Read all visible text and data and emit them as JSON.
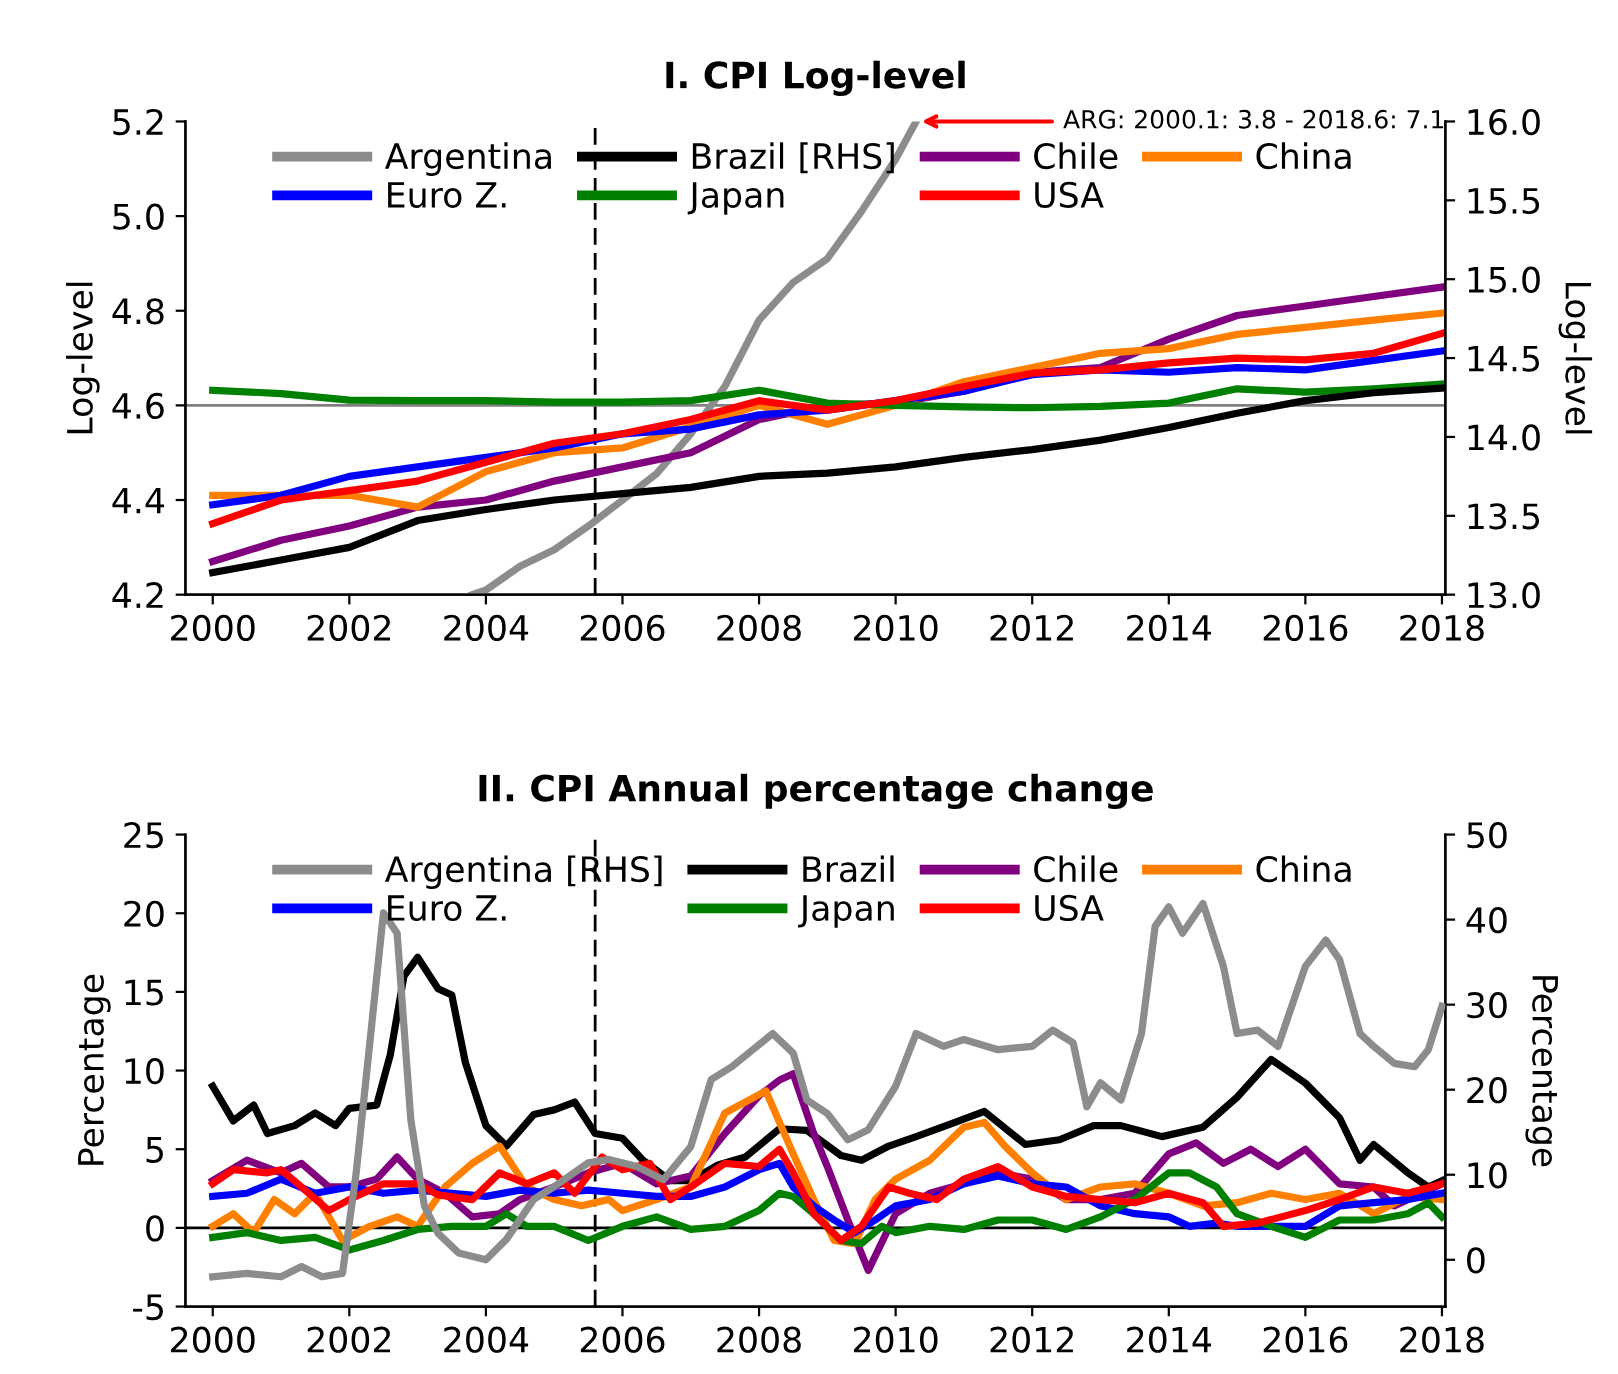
{
  "chart_data": [
    {
      "type": "line",
      "title": "I. CPI Log-level",
      "ylabel": "Log-level",
      "y2label": "Log-level",
      "x": [
        2000,
        2001,
        2002,
        2003,
        2004,
        2005,
        2006,
        2007,
        2008,
        2009,
        2010,
        2011,
        2012,
        2013,
        2014,
        2015,
        2016,
        2017,
        2018
      ],
      "series": [
        {
          "name": "Argentina",
          "color": "#8c8c8c",
          "x": [
            2003.8,
            2004,
            2004.5,
            2005,
            2005.5,
            2006,
            2006.5,
            2007,
            2007.5,
            2008,
            2008.5,
            2009,
            2009.5,
            2010,
            2010.3
          ],
          "values": [
            4.2,
            4.21,
            4.26,
            4.295,
            4.345,
            4.4,
            4.456,
            4.54,
            4.64,
            4.78,
            4.86,
            4.91,
            5.01,
            5.12,
            5.2
          ]
        },
        {
          "name": "Brazil [RHS]",
          "color": "#000000",
          "axis": "y2",
          "values": [
            13.14,
            13.22,
            13.3,
            13.47,
            13.54,
            13.6,
            13.64,
            13.68,
            13.75,
            13.77,
            13.81,
            13.87,
            13.92,
            13.98,
            14.06,
            14.15,
            14.23,
            14.28,
            14.31
          ]
        },
        {
          "name": "Chile",
          "color": "#800080",
          "values": [
            4.27,
            4.315,
            4.345,
            4.385,
            4.4,
            4.44,
            4.47,
            4.5,
            4.57,
            4.6,
            4.605,
            4.63,
            4.67,
            4.68,
            4.74,
            4.79,
            4.81,
            4.83,
            4.85
          ]
        },
        {
          "name": "China",
          "color": "#ff8000",
          "values": [
            4.41,
            4.41,
            4.41,
            4.385,
            4.46,
            4.5,
            4.51,
            4.555,
            4.6,
            4.56,
            4.6,
            4.65,
            4.68,
            4.71,
            4.72,
            4.75,
            4.765,
            4.78,
            4.795
          ]
        },
        {
          "name": "Euro Z.",
          "color": "#0000ff",
          "values": [
            4.39,
            4.41,
            4.45,
            4.47,
            4.49,
            4.51,
            4.54,
            4.55,
            4.58,
            4.59,
            4.61,
            4.63,
            4.665,
            4.675,
            4.67,
            4.68,
            4.675,
            4.695,
            4.715
          ]
        },
        {
          "name": "Japan",
          "color": "#008000",
          "values": [
            4.632,
            4.625,
            4.611,
            4.61,
            4.61,
            4.607,
            4.607,
            4.61,
            4.632,
            4.605,
            4.6,
            4.597,
            4.595,
            4.598,
            4.605,
            4.635,
            4.628,
            4.635,
            4.645
          ]
        },
        {
          "name": "USA",
          "color": "#ff0000",
          "values": [
            4.35,
            4.4,
            4.42,
            4.44,
            4.48,
            4.52,
            4.54,
            4.57,
            4.61,
            4.59,
            4.61,
            4.64,
            4.668,
            4.675,
            4.69,
            4.7,
            4.696,
            4.71,
            4.752
          ]
        }
      ],
      "xlim": [
        1999.6,
        2018.05
      ],
      "xticks": [
        2000,
        2002,
        2004,
        2006,
        2008,
        2010,
        2012,
        2014,
        2016,
        2018
      ],
      "ylim": [
        4.2,
        5.2
      ],
      "yticks": [
        4.2,
        4.4,
        4.6,
        4.8,
        {
          "value": 5,
          "label": "5.0"
        },
        5.2
      ],
      "y2lim": [
        13,
        16
      ],
      "y2ticks": [
        {
          "value": 13,
          "label": "13.0"
        },
        13.5,
        {
          "value": 14,
          "label": "14.0"
        },
        14.5,
        {
          "value": 15,
          "label": "15.0"
        },
        15.5,
        {
          "value": 16,
          "label": "16.0"
        }
      ],
      "ref_lines": [
        {
          "axis": "x",
          "value": 2005.6,
          "color": "#000000",
          "line_style": "dashed"
        },
        {
          "axis": "y",
          "value": 4.6,
          "color": "#808080"
        }
      ],
      "annotations": [
        "ARG: 2000.1: 3.8 - 2018.6: 7.1"
      ],
      "legend": "top",
      "grid": false
    },
    {
      "type": "line",
      "title": "II. CPI Annual percentage change",
      "ylabel": "Percentage",
      "y2label": "Percentage",
      "series": [
        {
          "name": "Argentina [RHS]",
          "color": "#8c8c8c",
          "axis": "y2",
          "x": [
            2000,
            2000.5,
            2001,
            2001.3,
            2001.6,
            2001.9,
            2002.1,
            2002.5,
            2002.7,
            2002.9,
            2003.1,
            2003.3,
            2003.6,
            2004,
            2004.3,
            2004.7,
            2005,
            2005.5,
            2005.8,
            2006.2,
            2006.6,
            2007,
            2007.3,
            2007.6,
            2008.2,
            2008.5,
            2008.7,
            2009,
            2009.3,
            2009.6,
            2010,
            2010.3,
            2010.7,
            2011,
            2011.5,
            2012,
            2012.3,
            2012.6,
            2012.8,
            2013,
            2013.3,
            2013.6,
            2013.8,
            2014,
            2014.2,
            2014.5,
            2014.8,
            2015,
            2015.3,
            2015.6,
            2016,
            2016.3,
            2016.5,
            2016.8,
            2017,
            2017.3,
            2017.6,
            2017.8,
            2018
          ],
          "values": [
            -2.0,
            -1.6,
            -2.0,
            -0.8,
            -2.0,
            -1.6,
            10.2,
            40.8,
            38.4,
            16.5,
            6.3,
            3.1,
            0.8,
            0,
            2.4,
            7.1,
            8.6,
            11.4,
            11.8,
            11.0,
            9.4,
            13.3,
            21.2,
            22.7,
            26.6,
            24.3,
            18.8,
            17.2,
            14.1,
            15.3,
            20.4,
            26.6,
            25.1,
            25.9,
            24.7,
            25.1,
            27.0,
            25.5,
            18.0,
            20.8,
            18.8,
            26.6,
            39.2,
            41.5,
            38.4,
            41.9,
            34.5,
            26.6,
            27.0,
            25.1,
            34.5,
            37.6,
            35.3,
            26.6,
            25.1,
            23.1,
            22.7,
            24.7,
            29.8
          ]
        },
        {
          "name": "Brazil",
          "color": "#000000",
          "x": [
            2000.0,
            2000.3,
            2000.6,
            2000.8,
            2001.2,
            2001.5,
            2001.8,
            2002.0,
            2002.4,
            2002.6,
            2002.8,
            2003.0,
            2003.3,
            2003.5,
            2003.7,
            2004.0,
            2004.3,
            2004.7,
            2005.0,
            2005.3,
            2005.6,
            2006.0,
            2006.3,
            2006.7,
            2007.0,
            2007.4,
            2007.8,
            2008.3,
            2008.7,
            2009.2,
            2009.5,
            2009.9,
            2010.3,
            2010.8,
            2011.3,
            2011.9,
            2012.4,
            2012.9,
            2013.3,
            2013.9,
            2014.5,
            2015.0,
            2015.5,
            2016.0,
            2016.5,
            2016.8,
            2017.0,
            2017.5,
            2017.8,
            2018.0
          ],
          "values": [
            9.0,
            6.8,
            7.8,
            6.0,
            6.5,
            7.3,
            6.5,
            7.6,
            7.8,
            11,
            16,
            17.2,
            15.2,
            14.8,
            10.5,
            6.5,
            5.2,
            7.2,
            7.5,
            8.0,
            6.0,
            5.7,
            4.3,
            3.0,
            3.0,
            4.0,
            4.5,
            6.3,
            6.2,
            4.6,
            4.3,
            5.2,
            5.8,
            6.6,
            7.4,
            5.3,
            5.6,
            6.5,
            6.5,
            5.8,
            6.4,
            8.3,
            10.7,
            9.2,
            7.0,
            4.3,
            5.3,
            3.5,
            2.6,
            3.0
          ]
        },
        {
          "name": "Chile",
          "color": "#800080",
          "x": [
            2000,
            2000.5,
            2001,
            2001.3,
            2001.7,
            2002,
            2002.4,
            2002.7,
            2003,
            2003.4,
            2003.8,
            2004.2,
            2004.5,
            2005,
            2005.5,
            2006,
            2006.5,
            2007,
            2007.5,
            2008,
            2008.3,
            2008.5,
            2008.8,
            2009.0,
            2009.3,
            2009.6,
            2010,
            2010.5,
            2011,
            2011.5,
            2012,
            2012.5,
            2013,
            2013.5,
            2014,
            2014.4,
            2014.8,
            2015.2,
            2015.6,
            2016,
            2016.5,
            2017,
            2017.3,
            2017.6,
            2018
          ],
          "values": [
            3.0,
            4.3,
            3.5,
            4.1,
            2.6,
            2.6,
            3.1,
            4.5,
            3.1,
            2.2,
            0.7,
            0.9,
            1.8,
            2.6,
            3.5,
            4.1,
            2.8,
            3.3,
            6.0,
            8.4,
            9.4,
            9.8,
            6.0,
            3.9,
            0.5,
            -2.7,
            0.9,
            2.2,
            2.8,
            3.5,
            3.1,
            1.8,
            1.8,
            2.2,
            4.7,
            5.4,
            4.1,
            5.0,
            3.9,
            5.0,
            2.8,
            2.6,
            1.4,
            2.0,
            2.8
          ]
        },
        {
          "name": "China",
          "color": "#ff8000",
          "x": [
            2000,
            2000.3,
            2000.6,
            2000.9,
            2001.2,
            2001.5,
            2001.9,
            2002.3,
            2002.7,
            2003,
            2003.4,
            2003.8,
            2004.2,
            2004.6,
            2005,
            2005.4,
            2005.8,
            2006,
            2006.5,
            2007,
            2007.5,
            2008.1,
            2008.5,
            2008.8,
            2009.1,
            2009.4,
            2009.7,
            2010,
            2010.5,
            2011,
            2011.3,
            2011.6,
            2012,
            2012.5,
            2013,
            2013.5,
            2014,
            2014.5,
            2015,
            2015.5,
            2016,
            2016.5,
            2017,
            2017.5,
            2018
          ],
          "values": [
            0.1,
            0.9,
            -0.3,
            1.8,
            0.9,
            2.2,
            -0.8,
            0.1,
            0.7,
            0.1,
            2.6,
            4.1,
            5.2,
            2.6,
            1.8,
            1.4,
            1.8,
            1.1,
            1.8,
            2.6,
            7.3,
            8.7,
            4.7,
            1.8,
            -0.8,
            -1.0,
            1.8,
            3.1,
            4.3,
            6.4,
            6.7,
            5.2,
            3.5,
            1.8,
            2.6,
            2.8,
            2.2,
            1.4,
            1.6,
            2.2,
            1.8,
            2.2,
            0.9,
            2.0,
            1.8
          ]
        },
        {
          "name": "Euro Z.",
          "color": "#0000ff",
          "x": [
            2000,
            2000.5,
            2001,
            2001.5,
            2002,
            2002.5,
            2003,
            2003.5,
            2004,
            2004.5,
            2005,
            2005.5,
            2006,
            2006.5,
            2007,
            2007.5,
            2008,
            2008.3,
            2008.5,
            2008.8,
            2009.1,
            2009.4,
            2009.7,
            2010,
            2010.5,
            2011,
            2011.5,
            2012,
            2012.5,
            2013,
            2013.5,
            2014,
            2014.3,
            2014.7,
            2015,
            2015.5,
            2016,
            2016.5,
            2017,
            2017.5,
            2018
          ],
          "values": [
            2.0,
            2.2,
            3.1,
            2.2,
            2.6,
            2.2,
            2.4,
            2.2,
            2.0,
            2.4,
            2.2,
            2.4,
            2.2,
            2.0,
            2.0,
            2.6,
            3.7,
            4.1,
            2.6,
            1.4,
            0.5,
            -0.3,
            0.5,
            1.4,
            1.8,
            2.8,
            3.3,
            2.8,
            2.6,
            1.4,
            0.9,
            0.7,
            0.1,
            0.3,
            0.1,
            0.1,
            0.1,
            1.4,
            1.6,
            1.8,
            2.2
          ]
        },
        {
          "name": "Japan",
          "color": "#008000",
          "x": [
            2000,
            2000.5,
            2001,
            2001.5,
            2002,
            2002.5,
            2003,
            2003.5,
            2004,
            2004.3,
            2004.6,
            2005,
            2005.5,
            2006,
            2006.5,
            2007,
            2007.5,
            2008,
            2008.3,
            2008.5,
            2008.8,
            2009.2,
            2009.5,
            2009.8,
            2010,
            2010.5,
            2011,
            2011.5,
            2012,
            2012.5,
            2013,
            2013.5,
            2014,
            2014.3,
            2014.7,
            2015,
            2015.5,
            2016,
            2016.5,
            2017,
            2017.5,
            2017.8,
            2018
          ],
          "values": [
            -0.6,
            -0.3,
            -0.8,
            -0.6,
            -1.4,
            -0.8,
            -0.1,
            0.1,
            0.1,
            0.9,
            0.1,
            0.1,
            -0.8,
            0.1,
            0.7,
            -0.1,
            0.1,
            1.1,
            2.2,
            2.0,
            0.9,
            -0.8,
            -1.0,
            0.1,
            -0.3,
            0.1,
            -0.1,
            0.5,
            0.5,
            -0.1,
            0.7,
            1.8,
            3.5,
            3.5,
            2.6,
            0.9,
            0.1,
            -0.6,
            0.5,
            0.5,
            0.9,
            1.6,
            0.7
          ]
        },
        {
          "name": "USA",
          "color": "#ff0000",
          "x": [
            2000,
            2000.3,
            2000.8,
            2001,
            2001.3,
            2001.7,
            2002,
            2002.5,
            2003,
            2003.3,
            2003.8,
            2004.2,
            2004.6,
            2005,
            2005.3,
            2005.7,
            2006,
            2006.4,
            2006.7,
            2007,
            2007.5,
            2008,
            2008.3,
            2008.5,
            2008.8,
            2009.2,
            2009.5,
            2009.9,
            2010.2,
            2010.6,
            2011,
            2011.5,
            2012,
            2012.5,
            2013,
            2013.5,
            2014,
            2014.5,
            2014.8,
            2015.3,
            2016,
            2016.5,
            2017,
            2017.5,
            2018
          ],
          "values": [
            2.8,
            3.7,
            3.5,
            3.7,
            2.6,
            1.1,
            1.8,
            2.8,
            2.8,
            2.1,
            1.8,
            3.5,
            2.8,
            3.5,
            2.2,
            4.5,
            3.7,
            4.1,
            1.8,
            2.6,
            4.1,
            3.9,
            5.0,
            3.5,
            0.9,
            -0.8,
            0.1,
            2.6,
            2.2,
            1.8,
            3.1,
            3.9,
            2.6,
            2.0,
            1.8,
            1.6,
            2.2,
            1.6,
            0.1,
            0.3,
            1.1,
            1.8,
            2.6,
            2.2,
            2.8
          ]
        }
      ],
      "xlim": [
        1999.6,
        2018.05
      ],
      "xticks": [
        2000,
        2002,
        2004,
        2006,
        2008,
        2010,
        2012,
        2014,
        2016,
        2018
      ],
      "ylim": [
        -5,
        25
      ],
      "yticks": [
        -5,
        0,
        5,
        10,
        15,
        20,
        25
      ],
      "y2lim": [
        -5.5,
        50
      ],
      "y2ticks": [
        0,
        10,
        20,
        30,
        40,
        50
      ],
      "ref_lines": [
        {
          "axis": "x",
          "value": 2005.6,
          "color": "#000000",
          "line_style": "dashed"
        },
        {
          "axis": "y",
          "value": 0,
          "color": "#000000"
        }
      ],
      "legend": "top",
      "grid": false
    }
  ]
}
